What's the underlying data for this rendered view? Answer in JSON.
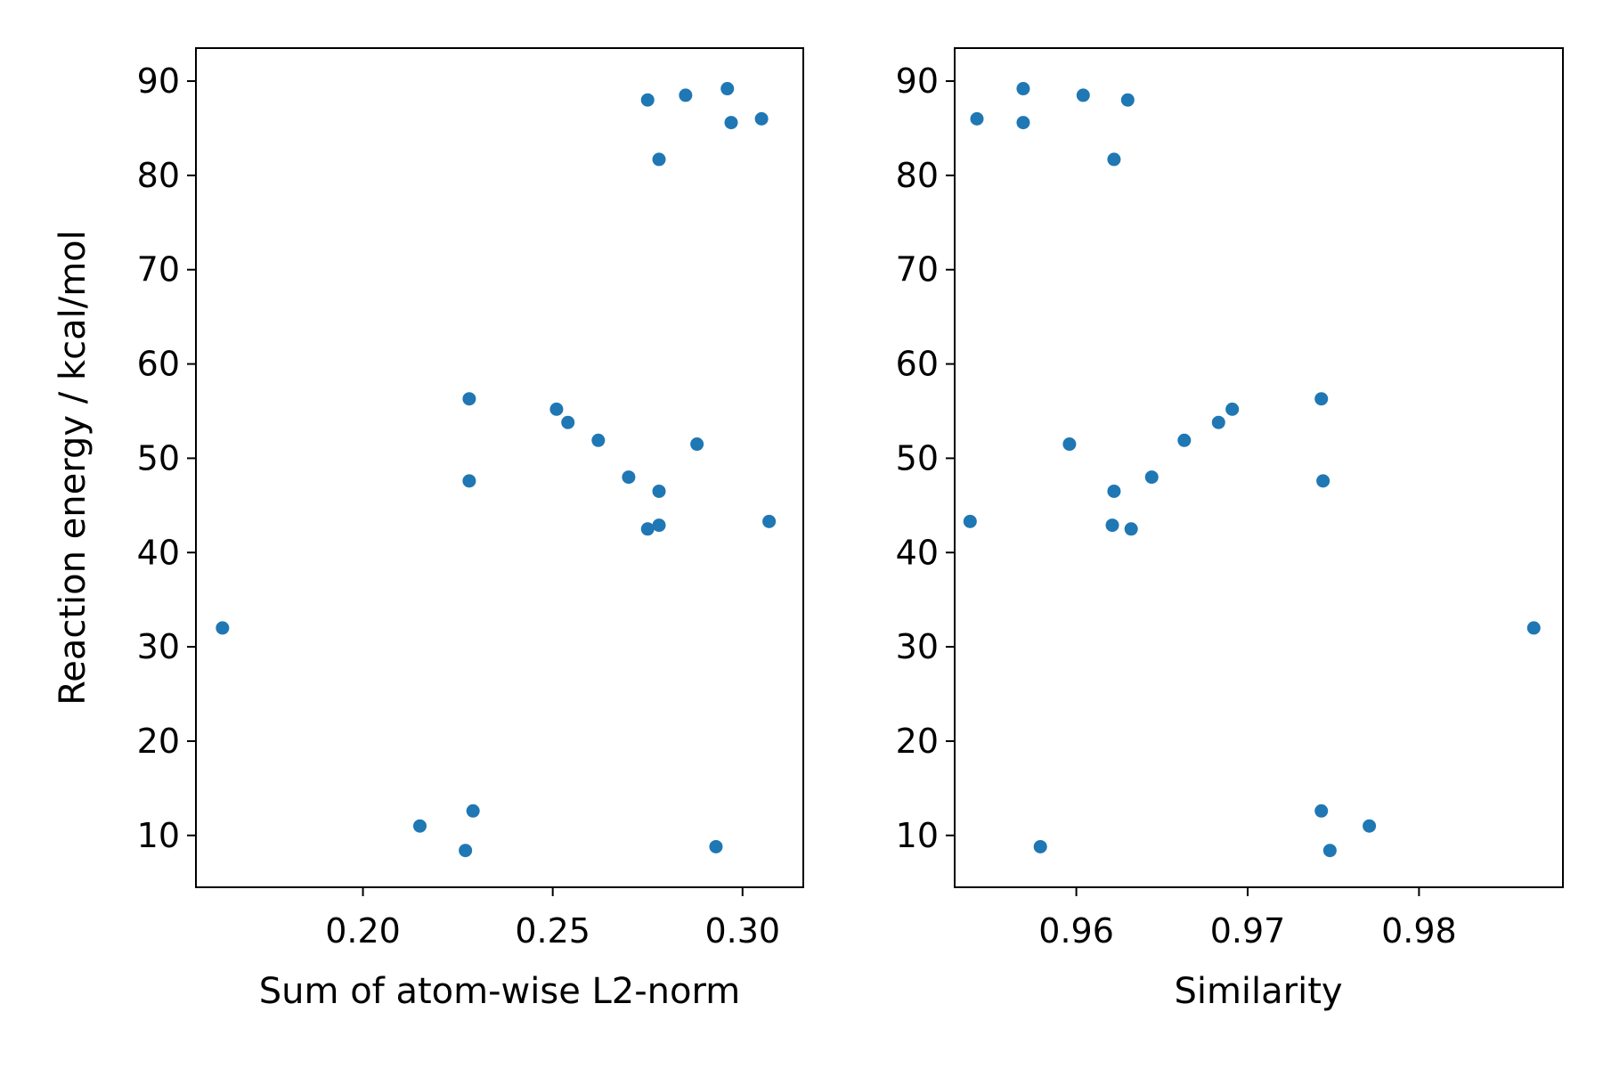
{
  "chart_data": [
    {
      "type": "scatter",
      "xlabel": "Sum of atom-wise L2-norm",
      "ylabel": "Reaction energy / kcal/mol",
      "xlim": [
        0.156,
        0.316
      ],
      "ylim": [
        4.5,
        93.5
      ],
      "xticks": [
        0.2,
        0.25,
        0.3
      ],
      "xtick_labels": [
        "0.20",
        "0.25",
        "0.30"
      ],
      "yticks": [
        10,
        20,
        30,
        40,
        50,
        60,
        70,
        80,
        90
      ],
      "ytick_labels": [
        "10",
        "20",
        "30",
        "40",
        "50",
        "60",
        "70",
        "80",
        "90"
      ],
      "grid": false,
      "color": "#1f77b4",
      "series": [
        {
          "points": [
            {
              "x": 0.163,
              "y": 32.0
            },
            {
              "x": 0.215,
              "y": 11.0
            },
            {
              "x": 0.227,
              "y": 8.4
            },
            {
              "x": 0.229,
              "y": 12.6
            },
            {
              "x": 0.228,
              "y": 47.6
            },
            {
              "x": 0.228,
              "y": 56.3
            },
            {
              "x": 0.251,
              "y": 55.2
            },
            {
              "x": 0.254,
              "y": 53.8
            },
            {
              "x": 0.262,
              "y": 51.9
            },
            {
              "x": 0.27,
              "y": 48.0
            },
            {
              "x": 0.275,
              "y": 42.5
            },
            {
              "x": 0.278,
              "y": 46.5
            },
            {
              "x": 0.278,
              "y": 42.9
            },
            {
              "x": 0.288,
              "y": 51.5
            },
            {
              "x": 0.293,
              "y": 8.8
            },
            {
              "x": 0.307,
              "y": 43.3
            },
            {
              "x": 0.275,
              "y": 88.0
            },
            {
              "x": 0.285,
              "y": 88.5
            },
            {
              "x": 0.296,
              "y": 89.2
            },
            {
              "x": 0.278,
              "y": 81.7
            },
            {
              "x": 0.297,
              "y": 85.6
            },
            {
              "x": 0.305,
              "y": 86.0
            }
          ]
        }
      ]
    },
    {
      "type": "scatter",
      "xlabel": "Similarity",
      "ylabel": "",
      "xlim": [
        0.9529,
        0.9884
      ],
      "ylim": [
        4.5,
        93.5
      ],
      "xticks": [
        0.96,
        0.97,
        0.98
      ],
      "xtick_labels": [
        "0.96",
        "0.97",
        "0.98"
      ],
      "yticks": [
        10,
        20,
        30,
        40,
        50,
        60,
        70,
        80,
        90
      ],
      "ytick_labels": [
        "10",
        "20",
        "30",
        "40",
        "50",
        "60",
        "70",
        "80",
        "90"
      ],
      "grid": false,
      "color": "#1f77b4",
      "series": [
        {
          "points": [
            {
              "x": 0.9538,
              "y": 43.3
            },
            {
              "x": 0.9542,
              "y": 86.0
            },
            {
              "x": 0.9569,
              "y": 89.2
            },
            {
              "x": 0.9569,
              "y": 85.6
            },
            {
              "x": 0.9579,
              "y": 8.8
            },
            {
              "x": 0.9596,
              "y": 51.5
            },
            {
              "x": 0.9604,
              "y": 88.5
            },
            {
              "x": 0.9622,
              "y": 81.7
            },
            {
              "x": 0.9622,
              "y": 46.5
            },
            {
              "x": 0.9621,
              "y": 42.9
            },
            {
              "x": 0.963,
              "y": 88.0
            },
            {
              "x": 0.9632,
              "y": 42.5
            },
            {
              "x": 0.9644,
              "y": 48.0
            },
            {
              "x": 0.9663,
              "y": 51.9
            },
            {
              "x": 0.9683,
              "y": 53.8
            },
            {
              "x": 0.9691,
              "y": 55.2
            },
            {
              "x": 0.9743,
              "y": 56.3
            },
            {
              "x": 0.9744,
              "y": 47.6
            },
            {
              "x": 0.9743,
              "y": 12.6
            },
            {
              "x": 0.9748,
              "y": 8.4
            },
            {
              "x": 0.9771,
              "y": 11.0
            },
            {
              "x": 0.9867,
              "y": 32.0
            }
          ]
        }
      ]
    }
  ]
}
